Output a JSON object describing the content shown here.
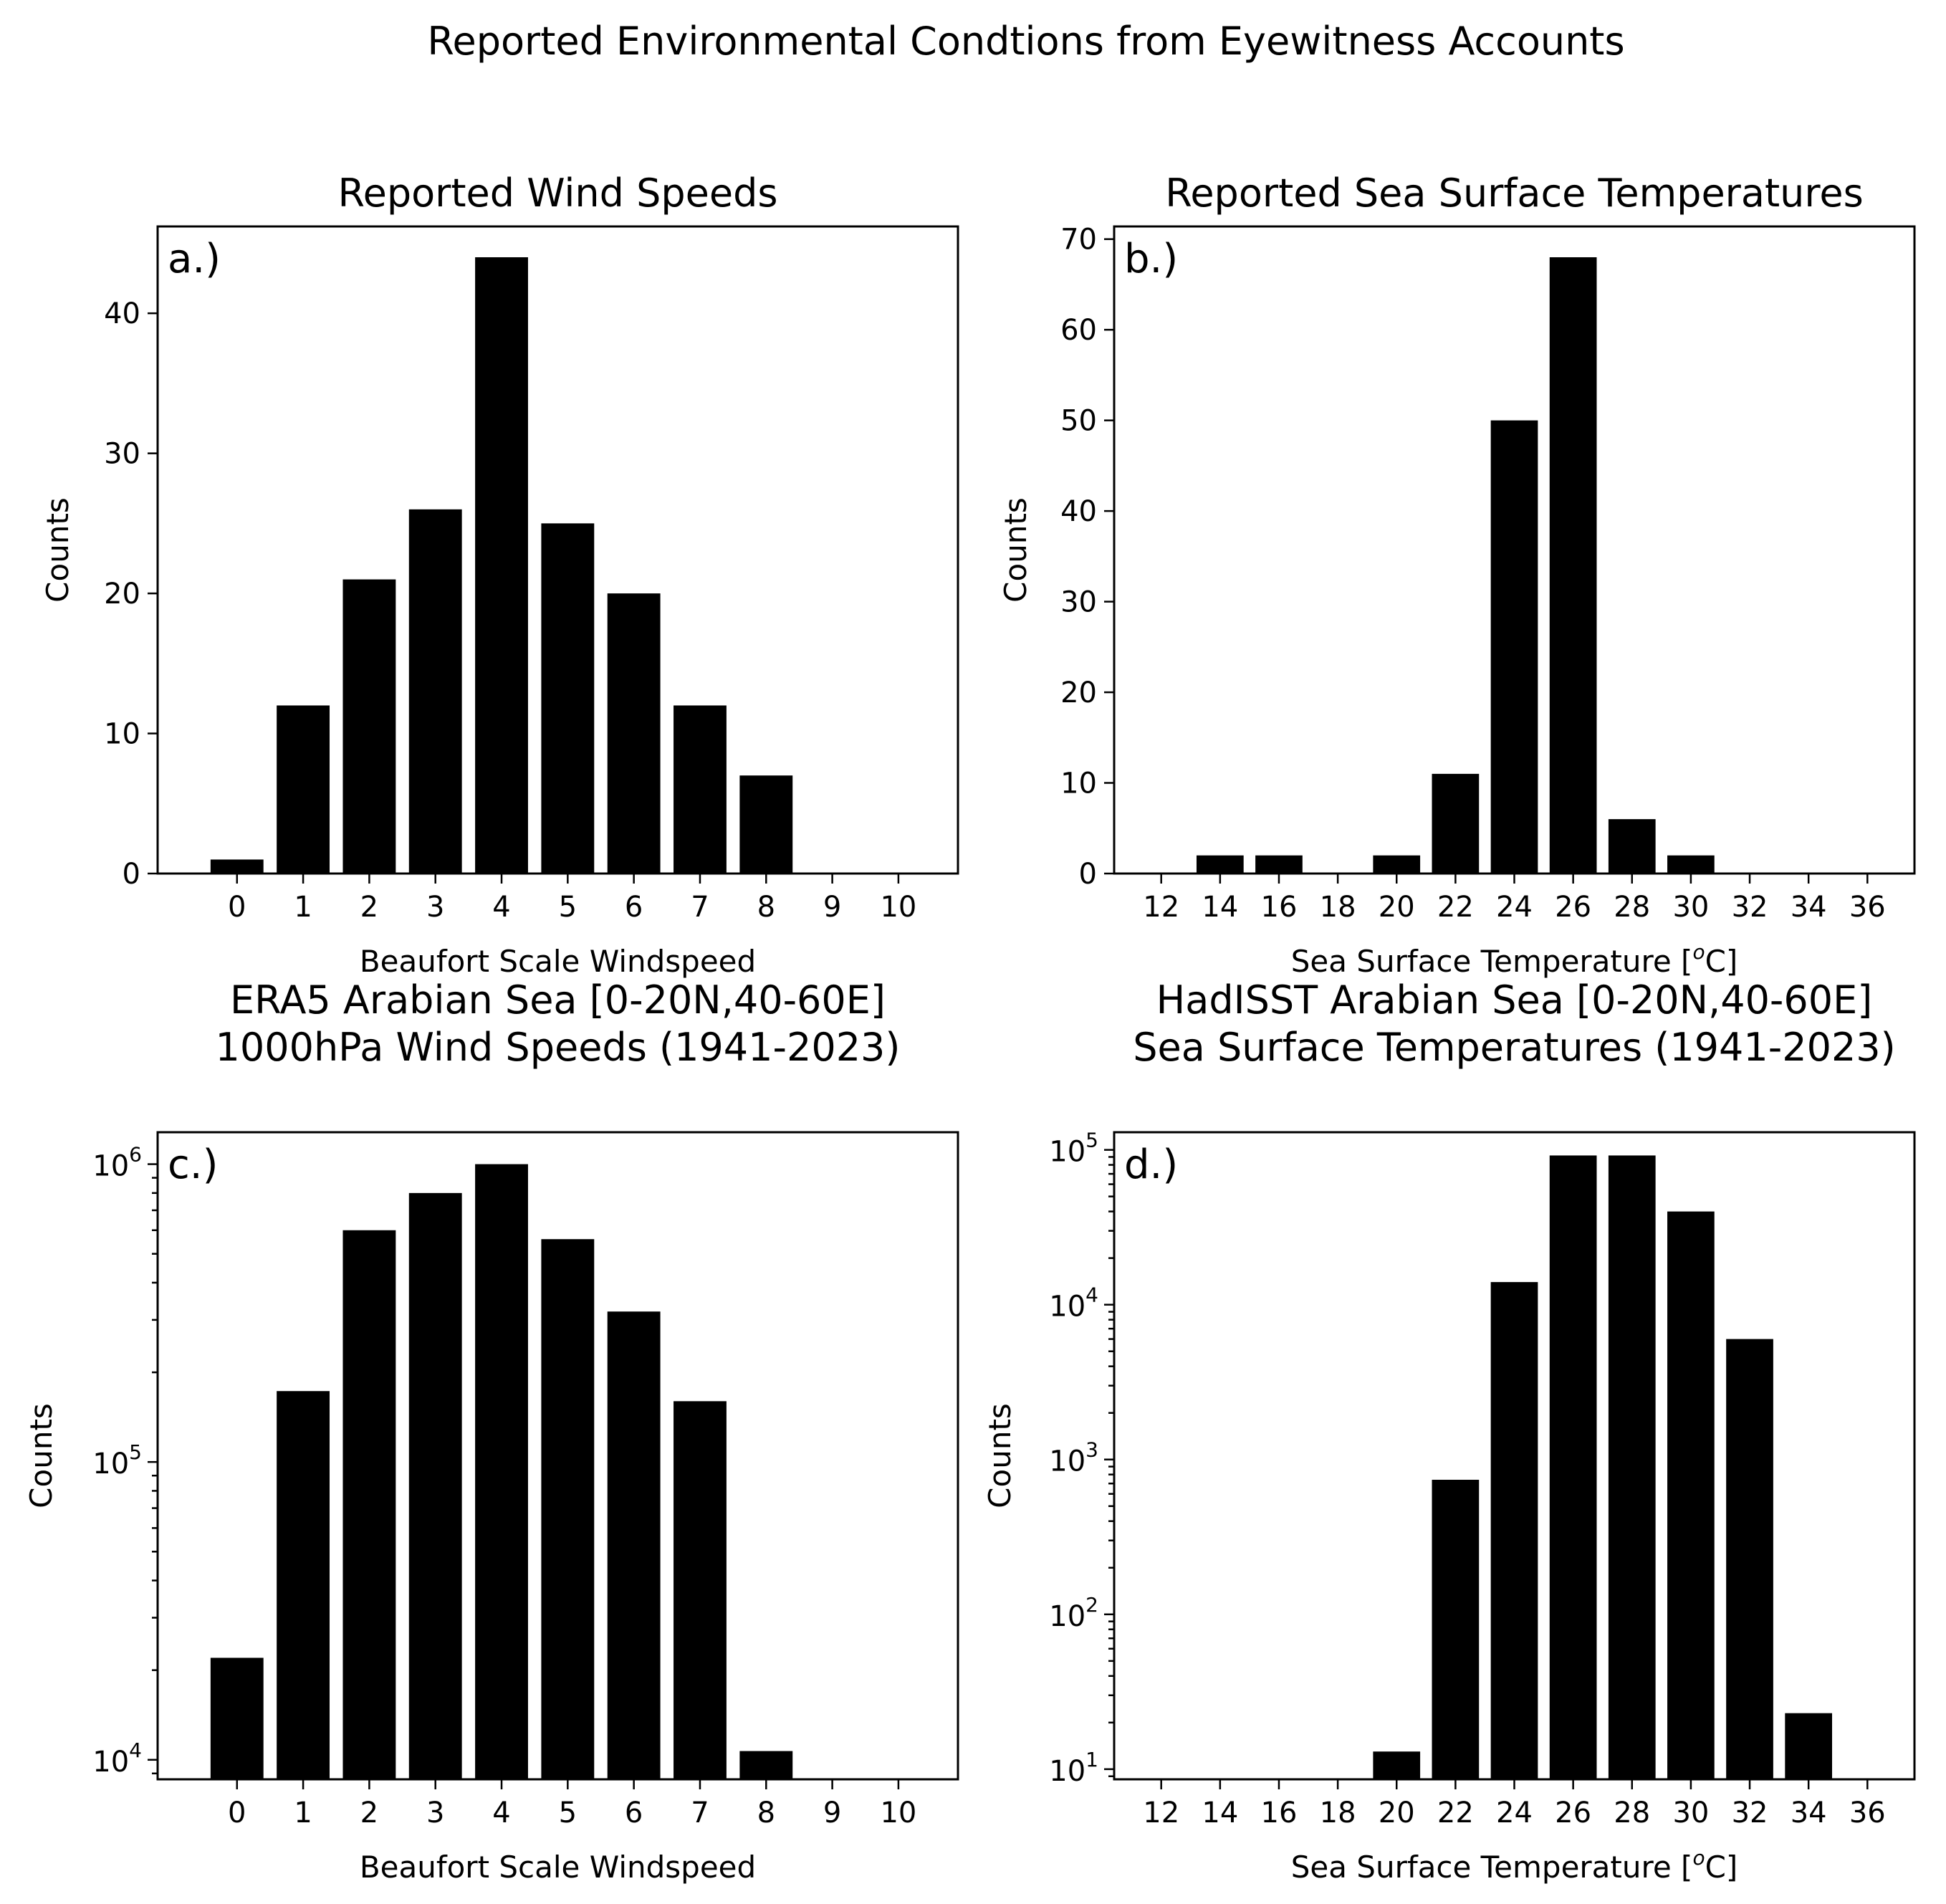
{
  "suptitle": "Reported Environmental Condtions from Eyewitness Accounts",
  "chart_data": [
    {
      "id": "a",
      "type": "bar",
      "panel_tag": "a.)",
      "title": [
        "Reported Wind Speeds"
      ],
      "xlabel": "Beaufort Scale Windspeed",
      "ylabel": "Counts",
      "yscale": "linear",
      "xlim": [
        -1.2,
        10.9
      ],
      "ylim": [
        0,
        46.2
      ],
      "xticks": [
        0,
        1,
        2,
        3,
        4,
        5,
        6,
        7,
        8,
        9,
        10
      ],
      "yticks": [
        0,
        10,
        20,
        30,
        40
      ],
      "bar_width": 0.8,
      "x": [
        0,
        1,
        2,
        3,
        4,
        5,
        6,
        7,
        8,
        9,
        10
      ],
      "values": [
        1,
        12,
        21,
        26,
        44,
        25,
        20,
        12,
        7,
        0,
        0
      ]
    },
    {
      "id": "b",
      "type": "bar",
      "panel_tag": "b.)",
      "title": [
        "Reported Sea Surface Temperatures"
      ],
      "xlabel": "Sea Surface Temperature [°C]",
      "xlabel_parts": [
        "Sea Surface Temperature [",
        "o",
        "C]"
      ],
      "ylabel": "Counts",
      "yscale": "linear",
      "xlim": [
        10.4,
        37.6
      ],
      "ylim": [
        0,
        71.4
      ],
      "xticks": [
        12,
        14,
        16,
        18,
        20,
        22,
        24,
        26,
        28,
        30,
        32,
        34,
        36
      ],
      "yticks": [
        0,
        10,
        20,
        30,
        40,
        50,
        60,
        70
      ],
      "bar_width": 1.6,
      "x": [
        12,
        14,
        16,
        18,
        20,
        22,
        24,
        26,
        28,
        30,
        32,
        34,
        36
      ],
      "values": [
        0,
        2,
        2,
        0,
        2,
        11,
        50,
        68,
        6,
        2,
        0,
        0,
        0
      ]
    },
    {
      "id": "c",
      "type": "bar",
      "panel_tag": "c.)",
      "title": [
        "ERA5 Arabian Sea [0-20N,40-60E]",
        "1000hPa Wind Speeds (1941-2023)"
      ],
      "xlabel": "Beaufort Scale Windspeed",
      "ylabel": "Counts",
      "yscale": "log",
      "xlim": [
        -1.2,
        10.9
      ],
      "ylim": [
        8600,
        1280000
      ],
      "xticks": [
        0,
        1,
        2,
        3,
        4,
        5,
        6,
        7,
        8,
        9,
        10
      ],
      "yticks": [
        10000,
        100000,
        1000000
      ],
      "ytick_labels": [
        [
          "10",
          "4"
        ],
        [
          "10",
          "5"
        ],
        [
          "10",
          "6"
        ]
      ],
      "bar_width": 0.8,
      "x": [
        0,
        1,
        2,
        3,
        4,
        5,
        6,
        7,
        8
      ],
      "values": [
        22000,
        173000,
        600000,
        800000,
        1000000,
        560000,
        320000,
        160000,
        10700
      ]
    },
    {
      "id": "d",
      "type": "bar",
      "panel_tag": "d.)",
      "title": [
        "HadISST Arabian Sea [0-20N,40-60E]",
        "Sea Surface Temperatures (1941-2023)"
      ],
      "xlabel": "Sea Surface Temperature [°C]",
      "xlabel_parts": [
        "Sea Surface Temperature [",
        "o",
        "C]"
      ],
      "ylabel": "Counts",
      "yscale": "log",
      "xlim": [
        10.4,
        37.6
      ],
      "ylim": [
        8.6,
        130000
      ],
      "xticks": [
        12,
        14,
        16,
        18,
        20,
        22,
        24,
        26,
        28,
        30,
        32,
        34,
        36
      ],
      "yticks": [
        10,
        100,
        1000,
        10000,
        100000
      ],
      "ytick_labels": [
        [
          "10",
          "1"
        ],
        [
          "10",
          "2"
        ],
        [
          "10",
          "3"
        ],
        [
          "10",
          "4"
        ],
        [
          "10",
          "5"
        ]
      ],
      "bar_width": 1.6,
      "x": [
        20,
        22,
        24,
        26,
        28,
        30,
        32,
        34
      ],
      "values": [
        13,
        740,
        14000,
        92000,
        92000,
        40000,
        6000,
        23
      ]
    }
  ]
}
